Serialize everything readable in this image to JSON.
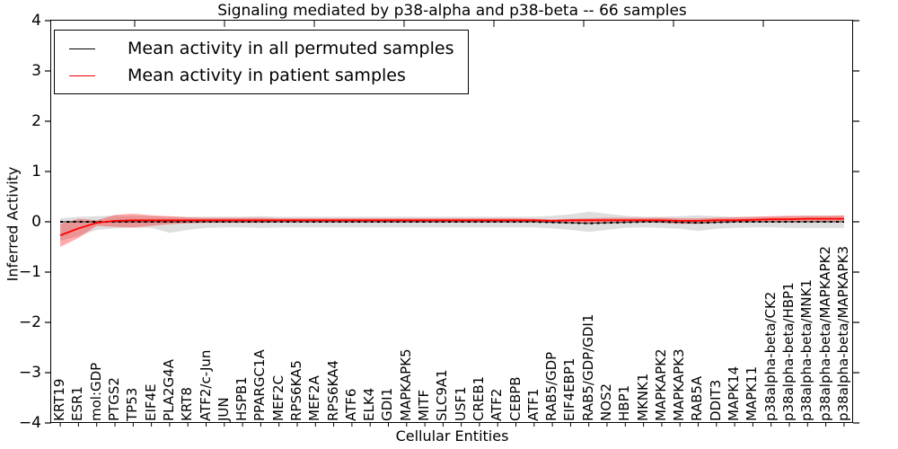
{
  "figure": {
    "title": "Signaling mediated by p38-alpha and p38-beta -- 66 samples",
    "xlabel": "Cellular Entities",
    "ylabel": "Inferred Activity"
  },
  "legend": {
    "items": [
      {
        "label": "Mean activity in all permuted samples",
        "color": "#000000"
      },
      {
        "label": "Mean activity in patient samples",
        "color": "#ff0000"
      }
    ]
  },
  "chart_data": {
    "type": "line",
    "title": "Signaling mediated by p38-alpha and p38-beta -- 66 samples",
    "xlabel": "Cellular Entities",
    "ylabel": "Inferred Activity",
    "ylim": [
      -4,
      4
    ],
    "yticks": [
      4,
      3,
      2,
      1,
      0,
      -1,
      -2,
      -3,
      -4
    ],
    "grid": false,
    "legend_position": "upper left",
    "sample_count": 66,
    "entities": [
      "KRT19",
      "ESR1",
      "mol:GDP",
      "PTGS2",
      "TP53",
      "EIF4E",
      "PLA2G4A",
      "KRT8",
      "ATF2/c-Jun",
      "JUN",
      "HSPB1",
      "PPARGC1A",
      "MEF2C",
      "RPS6KA5",
      "MEF2A",
      "RPS6KA4",
      "ATF6",
      "ELK4",
      "GDI1",
      "MAPKAPK5",
      "MITF",
      "SLC9A1",
      "USF1",
      "CREB1",
      "ATF2",
      "CEBPB",
      "ATF1",
      "RAB5/GDP",
      "EIF4EBP1",
      "RAB5/GDP/GDI1",
      "NOS2",
      "HBP1",
      "MKNK1",
      "MAPKAPK2",
      "MAPKAPK3",
      "RAB5A",
      "DDIT3",
      "MAPK14",
      "MAPK11",
      "p38alpha-beta/CK2",
      "p38alpha-beta/HBP1",
      "p38alpha-beta/MNK1",
      "p38alpha-beta/MAPKAPK2",
      "p38alpha-beta/MAPKAPK3"
    ],
    "series": [
      {
        "name": "Mean activity in all permuted samples",
        "color": "#000000",
        "dashed": true,
        "values": [
          0,
          0,
          0,
          0,
          0,
          0,
          0,
          0,
          0,
          0,
          0,
          0,
          0,
          0,
          0,
          0,
          0,
          0,
          0,
          0,
          0,
          0,
          0,
          0,
          0,
          0,
          0,
          -0.01,
          -0.02,
          -0.03,
          -0.02,
          -0.01,
          0,
          0,
          -0.01,
          -0.02,
          -0.01,
          0,
          0,
          0,
          0,
          0,
          0,
          0
        ],
        "band_upper": [
          0.07,
          0.1,
          0.11,
          0.12,
          0.12,
          0.11,
          0.1,
          0.1,
          0.1,
          0.1,
          0.1,
          0.11,
          0.1,
          0.1,
          0.1,
          0.1,
          0.1,
          0.1,
          0.1,
          0.1,
          0.1,
          0.1,
          0.1,
          0.1,
          0.1,
          0.1,
          0.1,
          0.12,
          0.15,
          0.2,
          0.16,
          0.12,
          0.1,
          0.1,
          0.11,
          0.13,
          0.11,
          0.1,
          0.1,
          0.1,
          0.11,
          0.12,
          0.12,
          0.12
        ],
        "band_lower": [
          -0.38,
          -0.28,
          -0.16,
          -0.13,
          -0.12,
          -0.12,
          -0.22,
          -0.16,
          -0.12,
          -0.11,
          -0.11,
          -0.12,
          -0.11,
          -0.11,
          -0.11,
          -0.11,
          -0.11,
          -0.11,
          -0.11,
          -0.11,
          -0.11,
          -0.11,
          -0.11,
          -0.11,
          -0.11,
          -0.11,
          -0.11,
          -0.13,
          -0.16,
          -0.2,
          -0.16,
          -0.12,
          -0.11,
          -0.12,
          -0.14,
          -0.18,
          -0.14,
          -0.12,
          -0.11,
          -0.11,
          -0.12,
          -0.12,
          -0.12,
          -0.12
        ],
        "band_color": "#000000",
        "band_opacity": 0.13
      },
      {
        "name": "Mean activity in patient samples",
        "color": "#ff0000",
        "dashed": false,
        "values": [
          -0.27,
          -0.13,
          -0.02,
          0.02,
          0.03,
          0.03,
          0.03,
          0.03,
          0.03,
          0.03,
          0.03,
          0.03,
          0.03,
          0.03,
          0.03,
          0.03,
          0.03,
          0.03,
          0.03,
          0.03,
          0.03,
          0.03,
          0.03,
          0.03,
          0.03,
          0.03,
          0.03,
          0.02,
          0.03,
          0.03,
          0.03,
          0.03,
          0.03,
          0.03,
          0.02,
          0.02,
          0.03,
          0.03,
          0.04,
          0.05,
          0.05,
          0.06,
          0.06,
          0.06
        ],
        "band_upper": [
          -0.04,
          0.06,
          0.03,
          0.14,
          0.16,
          0.13,
          0.11,
          0.09,
          0.08,
          0.08,
          0.08,
          0.08,
          0.07,
          0.07,
          0.07,
          0.07,
          0.07,
          0.07,
          0.07,
          0.07,
          0.07,
          0.07,
          0.07,
          0.07,
          0.07,
          0.07,
          0.06,
          0.05,
          0.06,
          0.07,
          0.08,
          0.08,
          0.08,
          0.08,
          0.07,
          0.07,
          0.08,
          0.09,
          0.1,
          0.11,
          0.12,
          0.12,
          0.12,
          0.13
        ],
        "band_lower": [
          -0.5,
          -0.32,
          -0.08,
          -0.1,
          -0.11,
          -0.08,
          -0.05,
          -0.03,
          -0.02,
          -0.02,
          -0.02,
          -0.02,
          -0.01,
          -0.01,
          -0.01,
          -0.01,
          -0.01,
          -0.01,
          -0.01,
          -0.01,
          -0.01,
          -0.01,
          -0.01,
          -0.01,
          -0.01,
          -0.01,
          -0.01,
          -0.02,
          -0.02,
          -0.02,
          -0.02,
          -0.01,
          -0.01,
          -0.02,
          -0.04,
          -0.04,
          -0.02,
          -0.01,
          0.0,
          0.0,
          0.0,
          0.0,
          0.01,
          0.01
        ],
        "band_color": "#ff2020",
        "band_opacity": 0.38
      }
    ]
  }
}
